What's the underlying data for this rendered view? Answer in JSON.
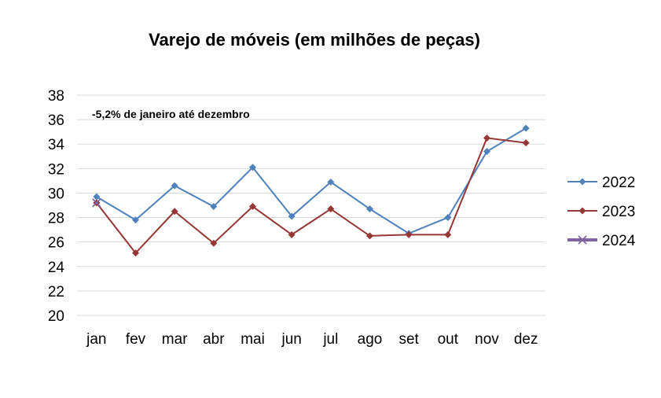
{
  "chart_data": {
    "type": "line",
    "title": "Varejo de móveis (em milhões de peças)",
    "annotation": "-5,2% de janeiro até dezembro",
    "xlabel": "",
    "ylabel": "",
    "categories": [
      "jan",
      "fev",
      "mar",
      "abr",
      "mai",
      "jun",
      "jul",
      "ago",
      "set",
      "out",
      "nov",
      "dez"
    ],
    "ylim": [
      20,
      38
    ],
    "yticks": [
      20,
      22,
      24,
      26,
      28,
      30,
      32,
      34,
      36,
      38
    ],
    "grid": true,
    "legend_position": "right",
    "series": [
      {
        "name": "2022",
        "color": "#4F81BD",
        "marker": "diamond",
        "values": [
          29.7,
          27.8,
          30.6,
          28.9,
          32.1,
          28.1,
          30.9,
          28.7,
          26.7,
          28.0,
          33.4,
          35.3
        ]
      },
      {
        "name": "2023",
        "color": "#953735",
        "marker": "diamond",
        "values": [
          29.2,
          25.1,
          28.5,
          25.9,
          28.9,
          26.6,
          28.7,
          26.5,
          26.6,
          26.6,
          34.5,
          34.1
        ]
      },
      {
        "name": "2024",
        "color": "#8064A2",
        "marker": "x",
        "values": [
          29.2,
          null,
          null,
          null,
          null,
          null,
          null,
          null,
          null,
          null,
          null,
          null
        ]
      }
    ]
  }
}
